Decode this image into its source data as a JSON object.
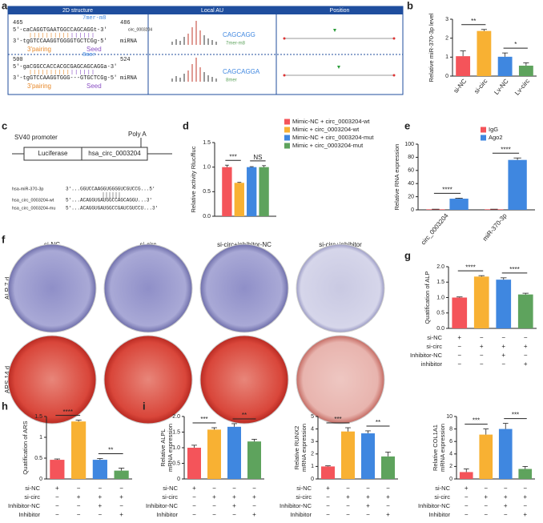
{
  "panel_a": {
    "label": "a",
    "headers": [
      "2D structure",
      "Local AU",
      "Position"
    ],
    "sites": [
      {
        "start": "465",
        "type": "7mer-m8",
        "end": "486",
        "target": "circ_0003204",
        "target_seq": "5'-caCAGGTGAATGGCCAGCAGGt-3'",
        "mirna_seq": "3'-tgGTCCAAGGTGGGGTGCTCGg-5'",
        "mirna": "miRNA",
        "pairing": "3'pairing",
        "seed": "Seed",
        "au_seq": "CAGCAGG",
        "au_type": "7mer-m8"
      },
      {
        "start": "500",
        "type": "8mer",
        "end": "524",
        "target_seq": "5'-gaCGGCCACCACGCGAGCAGCAGGa-3'",
        "mirna_seq": "3'-tgGTCCAAGGTGGG---GTGCTCGg-5'",
        "mirna": "miRNA",
        "pairing": "3'pairing",
        "seed": "Seed",
        "au_seq": "CAGCAGGA",
        "au_type": "8mer"
      }
    ]
  },
  "panel_c": {
    "label": "c",
    "promoter": "SV40 promoter",
    "polya": "Poly A",
    "luciferase": "Luciferase",
    "insert": "hsa_circ_0003204",
    "rows": [
      {
        "name": "hsa-miR-370-3p",
        "seq": "3'...GGUCCAAGGUGGGGUCGUCCG...5'"
      },
      {
        "name": "hsa_circ_0003204-wt",
        "seq": "5'...ACAGGUGAUGGCCAGCAGGU...3'"
      },
      {
        "name": "hsa_circ_0003204-mu",
        "seq": "5'...ACAGGUGAUGGCCGAUCGUCCU...3'"
      }
    ]
  },
  "panel_f": {
    "label": "f",
    "columns": [
      "si-NC",
      "si-circ",
      "si-circ+inhibitor-NC",
      "si-circ+inhibitor"
    ],
    "rows": [
      "ALP 7 d",
      "ARS 14 d"
    ]
  },
  "chart_data": [
    {
      "type": "bar",
      "panel_label": "b",
      "ylabel": "Relative miR-370-3p level",
      "categories": [
        "si-NC",
        "si-circ",
        "Lv-NC",
        "Lv-circ"
      ],
      "values": [
        1.05,
        2.38,
        1.02,
        0.55
      ],
      "errors": [
        0.28,
        0.08,
        0.2,
        0.15
      ],
      "colors": [
        "#f4545a",
        "#f8b133",
        "#3f87e0",
        "#5ea35d"
      ],
      "ylim": [
        0,
        3
      ],
      "yticks": [
        0,
        1,
        2,
        3
      ],
      "significance": [
        "**",
        "*"
      ]
    },
    {
      "type": "bar",
      "panel_label": "d",
      "ylabel": "Relative activity Rluc/fluc",
      "series": [
        {
          "name": "Mimic-NC + circ_0003204-wt",
          "color": "#f4545a",
          "values": [
            1.0
          ],
          "errors": [
            0.04
          ]
        },
        {
          "name": "Mimic + circ_0003204-wt",
          "color": "#f8b133",
          "values": [
            0.68
          ],
          "errors": [
            0.01
          ]
        },
        {
          "name": "Mimic-NC + circ_0003204-mut",
          "color": "#3f87e0",
          "values": [
            1.0
          ],
          "errors": [
            0.01
          ]
        },
        {
          "name": "Mimic + circ_0003204-mut",
          "color": "#5ea35d",
          "values": [
            1.0
          ],
          "errors": [
            0.03
          ]
        }
      ],
      "ylim": [
        0,
        1.5
      ],
      "yticks": [
        {
          "value": 0,
          "label": "0.0"
        },
        0.5,
        {
          "value": 1,
          "label": "1.0"
        },
        1.5
      ],
      "significance": [
        "***",
        "NS"
      ]
    },
    {
      "type": "bar",
      "panel_label": "e",
      "ylabel": "Relative RNA expression",
      "categories": [
        "circ_0003204",
        "miR-370-3p"
      ],
      "series": [
        {
          "name": "IgG",
          "color": "#f4545a",
          "values": [
            0.8,
            0.8
          ],
          "errors": [
            0.2,
            0.2
          ]
        },
        {
          "name": "Ago2",
          "color": "#3f87e0",
          "values": [
            17,
            76
          ],
          "errors": [
            0.8,
            3
          ]
        }
      ],
      "ylim": [
        0,
        100
      ],
      "yticks": [
        0,
        20,
        40,
        60,
        80,
        100
      ],
      "significance": [
        "****",
        "****"
      ]
    },
    {
      "type": "bar",
      "panel_label": "g",
      "ylabel": "Quatification of ALP",
      "values": [
        1.0,
        1.68,
        1.58,
        1.1
      ],
      "errors": [
        0.02,
        0.03,
        0.06,
        0.04
      ],
      "colors": [
        "#f4545a",
        "#f8b133",
        "#3f87e0",
        "#5ea35d"
      ],
      "ylim": [
        0,
        2
      ],
      "yticks": [
        {
          "value": 0,
          "label": "0.0"
        },
        0.5,
        {
          "value": 1,
          "label": "1.0"
        },
        1.5,
        {
          "value": 2,
          "label": "2.0"
        }
      ],
      "significance": [
        "****",
        "****"
      ],
      "treatments": [
        {
          "name": "si-NC",
          "marks": [
            "+",
            "−",
            "−",
            "−"
          ]
        },
        {
          "name": "si-circ",
          "marks": [
            "−",
            "+",
            "+",
            "+"
          ]
        },
        {
          "name": "Inhibitor-NC",
          "marks": [
            "−",
            "−",
            "+",
            "−"
          ]
        },
        {
          "name": "inhibitor",
          "marks": [
            "−",
            "−",
            "−",
            "+"
          ]
        }
      ]
    },
    {
      "type": "bar",
      "panel_label": "h",
      "ylabel": "Quatification of ARS",
      "values": [
        0.46,
        1.38,
        0.46,
        0.2
      ],
      "errors": [
        0.02,
        0.03,
        0.03,
        0.06
      ],
      "colors": [
        "#f4545a",
        "#f8b133",
        "#3f87e0",
        "#5ea35d"
      ],
      "ylim": [
        0,
        1.5
      ],
      "yticks": [
        0,
        0.5,
        1,
        1.5
      ],
      "significance": [
        "****",
        "**"
      ],
      "treatments": [
        {
          "name": "si-NC",
          "marks": [
            "+",
            "−",
            "−",
            "−"
          ]
        },
        {
          "name": "si-circ",
          "marks": [
            "−",
            "+",
            "+",
            "+"
          ]
        },
        {
          "name": "Inhibitor-NC",
          "marks": [
            "−",
            "−",
            "+",
            "−"
          ]
        },
        {
          "name": "Inhibitor",
          "marks": [
            "−",
            "−",
            "−",
            "+"
          ]
        }
      ]
    },
    {
      "type": "bar",
      "panel_label": "i",
      "ylabel": [
        "Relative ALPL",
        "mRNA expression"
      ],
      "values": [
        1.0,
        1.58,
        1.67,
        1.2
      ],
      "errors": [
        0.08,
        0.06,
        0.1,
        0.07
      ],
      "colors": [
        "#f4545a",
        "#f8b133",
        "#3f87e0",
        "#5ea35d"
      ],
      "ylim": [
        0,
        2
      ],
      "yticks": [
        0,
        0.5,
        {
          "value": 1,
          "label": "1.0"
        },
        1.5,
        {
          "value": 2,
          "label": "2.0"
        }
      ],
      "significance": [
        "***",
        "**"
      ],
      "treatments": [
        {
          "name": "si-NC",
          "marks": [
            "+",
            "−",
            "−",
            "−"
          ]
        },
        {
          "name": "si-circ",
          "marks": [
            "−",
            "+",
            "+",
            "+"
          ]
        },
        {
          "name": "Inhibitor-NC",
          "marks": [
            "−",
            "−",
            "+",
            "−"
          ]
        },
        {
          "name": "Inhibitor",
          "marks": [
            "−",
            "−",
            "−",
            "+"
          ]
        }
      ]
    },
    {
      "type": "bar",
      "ylabel": [
        "Relative RUNX2",
        "mRNA expression"
      ],
      "values": [
        1.0,
        3.8,
        3.65,
        1.8
      ],
      "errors": [
        0.05,
        0.3,
        0.2,
        0.35
      ],
      "colors": [
        "#f4545a",
        "#f8b133",
        "#3f87e0",
        "#5ea35d"
      ],
      "ylim": [
        0,
        5
      ],
      "yticks": [
        0,
        1,
        2,
        3,
        4,
        5
      ],
      "significance": [
        "***",
        "**"
      ],
      "treatments": [
        {
          "name": "si-NC",
          "marks": [
            "+",
            "−",
            "−",
            "−"
          ]
        },
        {
          "name": "si-circ",
          "marks": [
            "−",
            "+",
            "+",
            "+"
          ]
        },
        {
          "name": "Inhibitor-NC",
          "marks": [
            "−",
            "−",
            "+",
            "−"
          ]
        },
        {
          "name": "Inhibitor",
          "marks": [
            "−",
            "−",
            "−",
            "+"
          ]
        }
      ]
    },
    {
      "type": "bar",
      "ylabel": [
        "Relative COL1A1",
        "mRNA expression"
      ],
      "values": [
        1.1,
        7.1,
        8.0,
        1.6
      ],
      "errors": [
        0.5,
        0.9,
        0.9,
        0.4
      ],
      "colors": [
        "#f4545a",
        "#f8b133",
        "#3f87e0",
        "#5ea35d"
      ],
      "ylim": [
        0,
        10
      ],
      "yticks": [
        0,
        2,
        4,
        6,
        8,
        10
      ],
      "significance": [
        "***",
        "***"
      ],
      "treatments": [
        {
          "name": "si-NC",
          "marks": [
            "+",
            "−",
            "−",
            "−"
          ]
        },
        {
          "name": "si-circ",
          "marks": [
            "−",
            "+",
            "+",
            "+"
          ]
        },
        {
          "name": "Inhibitor-NC",
          "marks": [
            "−",
            "−",
            "+",
            "−"
          ]
        },
        {
          "name": "Inhibitor",
          "marks": [
            "−",
            "−",
            "−",
            "+"
          ]
        }
      ]
    }
  ]
}
